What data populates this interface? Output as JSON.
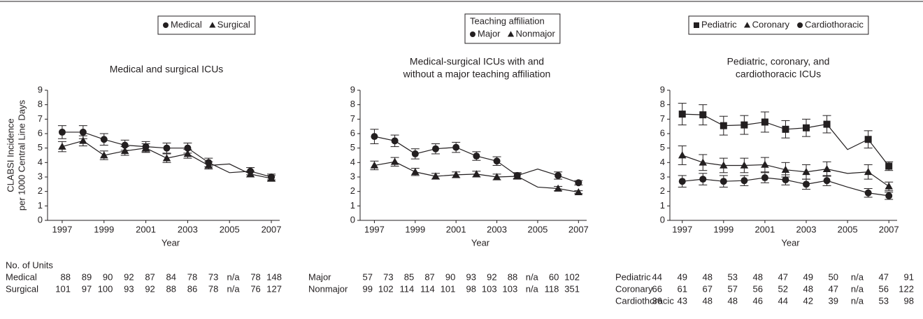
{
  "chart_data": [
    {
      "type": "line",
      "title": [
        "Medical and surgical ICUs"
      ],
      "ylabel": [
        "CLABSI Incidence",
        "per 1000 Central Line Days"
      ],
      "xlabel": "Year",
      "x": [
        1997,
        1998,
        1999,
        2000,
        2001,
        2002,
        2003,
        2004,
        2005,
        2006,
        2007
      ],
      "xlim": [
        1996.3,
        2007.4
      ],
      "xticks": [
        1997,
        1999,
        2001,
        2003,
        2005,
        2007
      ],
      "ylim": [
        0,
        9
      ],
      "yticks": [
        0,
        1,
        2,
        3,
        4,
        5,
        6,
        7,
        8,
        9
      ],
      "series": [
        {
          "name": "Medical",
          "marker": "circle",
          "color": "#231f20",
          "values": [
            6.1,
            6.1,
            5.6,
            5.2,
            5.1,
            5.0,
            5.0,
            4.0,
            3.3,
            3.4,
            3.0
          ],
          "errors": [
            0.45,
            0.45,
            0.4,
            0.35,
            0.35,
            0.35,
            0.35,
            0.3,
            null,
            0.25,
            0.2
          ]
        },
        {
          "name": "Surgical",
          "marker": "triangle",
          "color": "#231f20",
          "values": [
            5.1,
            5.5,
            4.5,
            4.8,
            5.0,
            4.3,
            4.6,
            3.8,
            3.9,
            3.2,
            2.9
          ],
          "errors": [
            0.35,
            0.35,
            0.3,
            0.3,
            0.3,
            0.3,
            0.3,
            0.25,
            null,
            0.2,
            0.2
          ]
        }
      ],
      "table": {
        "title": "No. of Units",
        "rows": [
          {
            "label": "Medical",
            "values": [
              88,
              89,
              90,
              92,
              87,
              84,
              78,
              73,
              "n/a",
              78,
              148
            ]
          },
          {
            "label": "Surgical",
            "values": [
              101,
              97,
              100,
              93,
              92,
              88,
              86,
              78,
              "n/a",
              76,
              127
            ]
          }
        ]
      }
    },
    {
      "type": "line",
      "title": [
        "Medical-surgical ICUs with and",
        "without a major teaching affiliation"
      ],
      "xlabel": "Year",
      "legend_title": "Teaching affiliation",
      "x": [
        1997,
        1998,
        1999,
        2000,
        2001,
        2002,
        2003,
        2004,
        2005,
        2006,
        2007
      ],
      "xlim": [
        1996.3,
        2007.4
      ],
      "xticks": [
        1997,
        1999,
        2001,
        2003,
        2005,
        2007
      ],
      "ylim": [
        0,
        9
      ],
      "yticks": [
        0,
        1,
        2,
        3,
        4,
        5,
        6,
        7,
        8,
        9
      ],
      "series": [
        {
          "name": "Major",
          "marker": "circle",
          "color": "#231f20",
          "values": [
            5.8,
            5.5,
            4.6,
            4.95,
            5.05,
            4.45,
            4.1,
            3.1,
            3.55,
            3.1,
            2.6
          ],
          "errors": [
            0.5,
            0.4,
            0.35,
            0.35,
            0.35,
            0.3,
            0.3,
            0.2,
            null,
            0.25,
            0.15
          ]
        },
        {
          "name": "Nonmajor",
          "marker": "triangle",
          "color": "#231f20",
          "values": [
            3.8,
            4.05,
            3.35,
            3.05,
            3.15,
            3.2,
            3.0,
            3.05,
            2.3,
            2.2,
            1.95
          ],
          "errors": [
            0.3,
            0.3,
            0.25,
            0.2,
            0.2,
            0.2,
            0.2,
            0.2,
            null,
            0.15,
            0.1
          ]
        }
      ],
      "table": {
        "rows": [
          {
            "label": "Major",
            "values": [
              57,
              73,
              85,
              87,
              90,
              93,
              92,
              88,
              "n/a",
              60,
              102
            ]
          },
          {
            "label": "Nonmajor",
            "values": [
              99,
              102,
              114,
              114,
              101,
              98,
              103,
              103,
              "n/a",
              118,
              351
            ]
          }
        ]
      }
    },
    {
      "type": "line",
      "title": [
        "Pediatric, coronary, and",
        "cardiothoracic ICUs"
      ],
      "xlabel": "Year",
      "x": [
        1997,
        1998,
        1999,
        2000,
        2001,
        2002,
        2003,
        2004,
        2005,
        2006,
        2007
      ],
      "xlim": [
        1996.4,
        2007.4
      ],
      "xticks": [
        1997,
        1999,
        2001,
        2003,
        2005,
        2007
      ],
      "ylim": [
        0,
        9
      ],
      "yticks": [
        0,
        1,
        2,
        3,
        4,
        5,
        6,
        7,
        8,
        9
      ],
      "series": [
        {
          "name": "Pediatric",
          "marker": "square",
          "color": "#231f20",
          "values": [
            7.35,
            7.3,
            6.55,
            6.6,
            6.8,
            6.3,
            6.4,
            6.65,
            4.9,
            5.6,
            3.75
          ],
          "errors": [
            0.75,
            0.7,
            0.65,
            0.65,
            0.7,
            0.6,
            0.6,
            0.6,
            null,
            0.6,
            0.3
          ]
        },
        {
          "name": "Coronary",
          "marker": "triangle",
          "color": "#231f20",
          "values": [
            4.5,
            4.0,
            3.8,
            3.8,
            3.85,
            3.5,
            3.35,
            3.55,
            3.25,
            3.35,
            2.35
          ],
          "errors": [
            0.65,
            0.55,
            0.5,
            0.5,
            0.5,
            0.5,
            0.5,
            0.5,
            null,
            0.5,
            0.3
          ]
        },
        {
          "name": "Cardiothoracic",
          "marker": "circle",
          "color": "#231f20",
          "values": [
            2.7,
            2.85,
            2.7,
            2.75,
            2.95,
            2.8,
            2.5,
            2.75,
            2.3,
            1.9,
            1.7
          ],
          "errors": [
            0.4,
            0.4,
            0.4,
            0.35,
            0.35,
            0.35,
            0.35,
            0.35,
            null,
            0.3,
            0.25
          ]
        }
      ],
      "table": {
        "rows": [
          {
            "label": "Pediatric",
            "values": [
              44,
              49,
              48,
              53,
              48,
              47,
              49,
              50,
              "n/a",
              47,
              91
            ]
          },
          {
            "label": "Coronary",
            "values": [
              66,
              61,
              67,
              57,
              56,
              52,
              48,
              47,
              "n/a",
              56,
              122
            ]
          },
          {
            "label": "Cardiothoracic",
            "values": [
              36,
              43,
              48,
              48,
              46,
              44,
              42,
              39,
              "n/a",
              53,
              98
            ]
          }
        ]
      }
    }
  ]
}
